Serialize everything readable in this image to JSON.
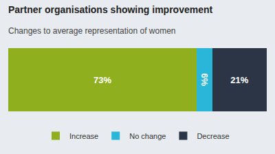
{
  "chart_data": {
    "type": "bar",
    "title": "Partner organisations showing improvement",
    "subtitle": "Changes to average representation of women",
    "orientation": "horizontal",
    "stacked": true,
    "categories": [
      null
    ],
    "series": [
      {
        "name": "Increase",
        "color": "#8faf1e",
        "values": [
          73
        ],
        "value_labels": [
          "73%"
        ]
      },
      {
        "name": "No change",
        "color": "#29b6d8",
        "values": [
          6
        ],
        "value_labels": [
          "6%"
        ]
      },
      {
        "name": "Decrease",
        "color": "#2b3545",
        "values": [
          21
        ],
        "value_labels": [
          "21%"
        ]
      }
    ],
    "xlim": [
      0,
      100
    ],
    "xticks": [
      0,
      100
    ],
    "grid": true,
    "data_labels": true,
    "tick_labels": false,
    "legend": "bottom"
  }
}
